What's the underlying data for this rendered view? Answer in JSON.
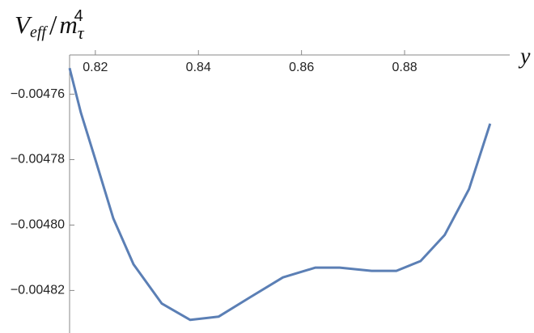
{
  "chart_data": {
    "type": "line",
    "ylabel": {
      "base": "V",
      "sub": "eff",
      "sep": "/",
      "base2": "m",
      "sub2": "τ",
      "sup2": "4"
    },
    "xlabel": "y",
    "color": "#5b7fb5",
    "x": [
      0.815,
      0.8172,
      0.82,
      0.8235,
      0.8274,
      0.8329,
      0.8384,
      0.8439,
      0.8501,
      0.8564,
      0.8627,
      0.8674,
      0.8736,
      0.8784,
      0.8831,
      0.8878,
      0.8925,
      0.8966
    ],
    "values": [
      -0.004752,
      -0.0047657,
      -0.00478,
      -0.004798,
      -0.004812,
      -0.004824,
      -0.004829,
      -0.004828,
      -0.004822,
      -0.004816,
      -0.004813,
      -0.004813,
      -0.004814,
      -0.004814,
      -0.004811,
      -0.004803,
      -0.004789,
      -0.004769
    ],
    "xlim": [
      0.815,
      0.9004
    ],
    "ylim": [
      -0.004833,
      -0.004748
    ],
    "xticks": [
      0.82,
      0.84,
      0.86,
      0.88
    ],
    "yticks": [
      {
        "value": -0.00476,
        "label": "−0.00476"
      },
      {
        "value": -0.00478,
        "label": "−0.00478"
      },
      {
        "value": -0.0048,
        "label": "−0.00480"
      },
      {
        "value": -0.00482,
        "label": "−0.00482"
      }
    ]
  }
}
